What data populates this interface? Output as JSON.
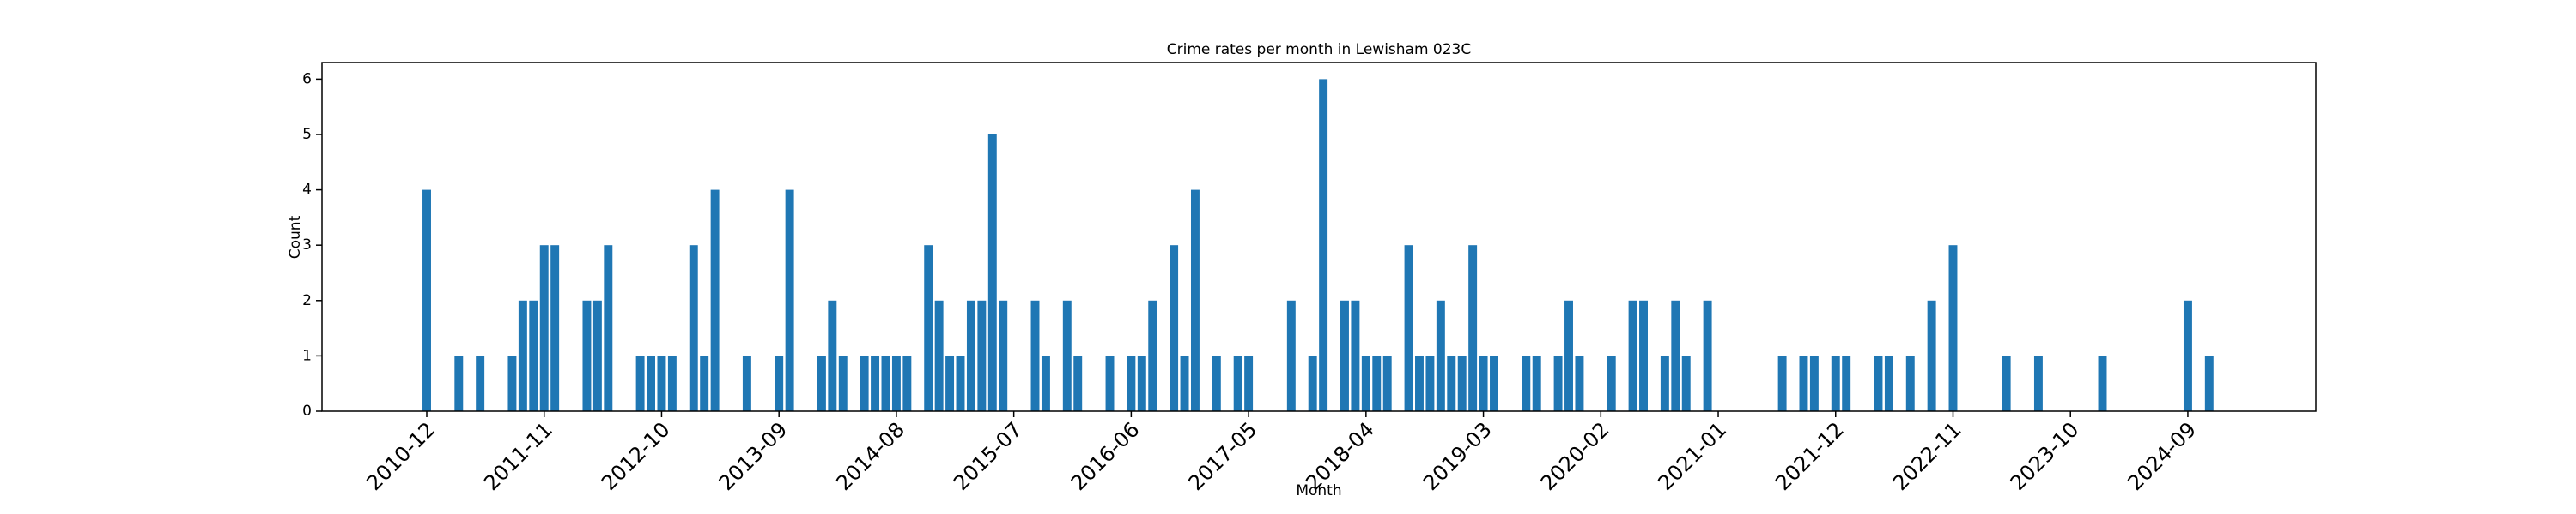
{
  "chart_data": {
    "type": "bar",
    "title": "Crime rates per month in Lewisham 023C",
    "x_label": "Month",
    "y_label": "Count",
    "color": "#1f77b4",
    "categories": [
      "2010-12",
      null,
      null,
      null,
      null,
      null,
      null,
      null,
      null,
      null,
      null,
      "2011-11",
      null,
      null,
      null,
      null,
      null,
      null,
      null,
      null,
      null,
      null,
      "2012-10",
      null,
      null,
      null,
      null,
      null,
      null,
      null,
      null,
      null,
      null,
      "2013-09",
      null,
      null,
      null,
      null,
      null,
      null,
      null,
      null,
      null,
      null,
      "2014-08",
      null,
      null,
      null,
      null,
      null,
      null,
      null,
      null,
      null,
      null,
      "2015-07",
      null,
      null,
      null,
      null,
      null,
      null,
      null,
      null,
      null,
      null,
      "2016-06",
      null,
      null,
      null,
      null,
      null,
      null,
      null,
      null,
      null,
      null,
      "2017-05",
      null,
      null,
      null,
      null,
      null,
      null,
      null,
      null,
      null,
      null,
      "2018-04",
      null,
      null,
      null,
      null,
      null,
      null,
      null,
      null,
      null,
      null,
      "2019-03",
      null,
      null,
      null,
      null,
      null,
      null,
      null,
      null,
      null,
      null,
      "2020-02",
      null,
      null,
      null,
      null,
      null,
      null,
      null,
      null,
      null,
      null,
      "2021-01",
      null,
      null,
      null,
      null,
      null,
      null,
      null,
      null,
      null,
      null,
      "2021-12",
      null,
      null,
      null,
      null,
      null,
      null,
      null,
      null,
      null,
      null,
      "2022-11",
      null,
      null,
      null,
      null,
      null,
      null,
      null,
      null,
      null,
      null,
      "2023-10",
      null,
      null,
      null,
      null,
      null,
      null,
      null,
      null,
      null,
      null,
      "2024-09",
      null,
      null
    ],
    "values": [
      4,
      0,
      0,
      1,
      0,
      1,
      0,
      0,
      1,
      2,
      2,
      3,
      3,
      0,
      0,
      2,
      2,
      3,
      0,
      0,
      1,
      1,
      1,
      1,
      0,
      3,
      1,
      4,
      0,
      0,
      1,
      0,
      0,
      1,
      4,
      0,
      0,
      1,
      2,
      1,
      0,
      1,
      1,
      1,
      1,
      1,
      0,
      3,
      2,
      1,
      1,
      2,
      2,
      5,
      2,
      0,
      0,
      2,
      1,
      0,
      2,
      1,
      0,
      0,
      1,
      0,
      1,
      1,
      2,
      0,
      3,
      1,
      4,
      0,
      1,
      0,
      1,
      1,
      0,
      0,
      0,
      2,
      0,
      1,
      6,
      0,
      2,
      2,
      1,
      1,
      1,
      0,
      3,
      1,
      1,
      2,
      1,
      1,
      3,
      1,
      1,
      0,
      0,
      1,
      1,
      0,
      1,
      2,
      1,
      0,
      0,
      1,
      0,
      2,
      2,
      0,
      1,
      2,
      1,
      0,
      2,
      0,
      0,
      0,
      0,
      0,
      0,
      1,
      0,
      1,
      1,
      0,
      1,
      1,
      0,
      0,
      1,
      1,
      0,
      1,
      0,
      2,
      0,
      3,
      0,
      0,
      0,
      0,
      1,
      0,
      0,
      1,
      0,
      0,
      0,
      0,
      0,
      1,
      0,
      0,
      0,
      0,
      0,
      0,
      0,
      2,
      0,
      1
    ],
    "ylim": [
      0,
      6.3
    ],
    "yticks": [
      0,
      1,
      2,
      3,
      4,
      5,
      6
    ],
    "grid": false
  }
}
